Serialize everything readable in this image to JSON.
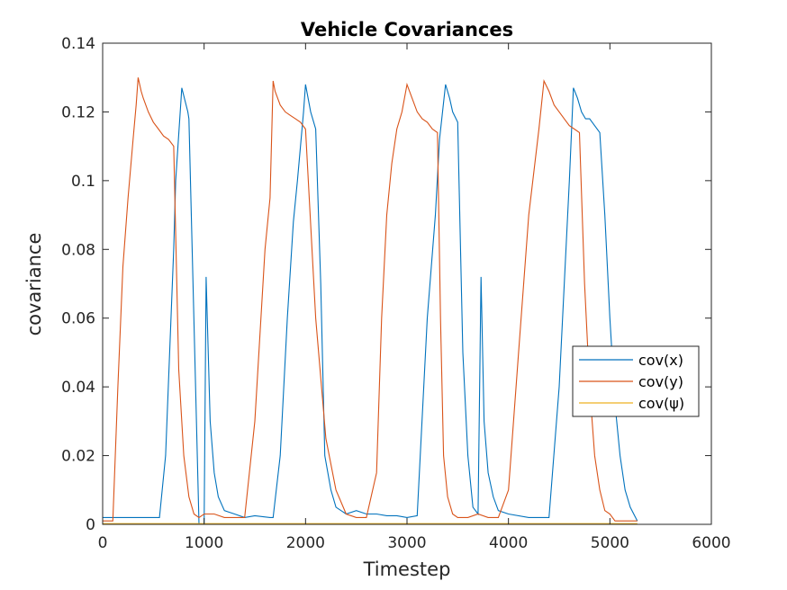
{
  "chart_data": {
    "type": "line",
    "title": "Vehicle Covariances",
    "xlabel": "Timestep",
    "ylabel": "covariance",
    "xlim": [
      0,
      6000
    ],
    "ylim": [
      0,
      0.14
    ],
    "x_ticks": [
      "0",
      "1000",
      "2000",
      "3000",
      "4000",
      "5000",
      "6000"
    ],
    "y_ticks": [
      "0",
      "0.02",
      "0.04",
      "0.06",
      "0.08",
      "0.1",
      "0.12",
      "0.14"
    ],
    "grid": false,
    "legend_position": "right",
    "colors": [
      "#0072BD",
      "#D95319",
      "#EDB120"
    ],
    "series": [
      {
        "name": "cov(x)",
        "x": [
          0,
          150,
          400,
          560,
          620,
          700,
          720,
          780,
          840,
          850,
          950,
          970,
          1000,
          1020,
          1060,
          1100,
          1140,
          1200,
          1300,
          1400,
          1500,
          1650,
          1680,
          1750,
          1820,
          1880,
          1920,
          1980,
          2000,
          2050,
          2100,
          2150,
          2190,
          2250,
          2300,
          2400,
          2500,
          2600,
          2700,
          2800,
          2900,
          3000,
          3100,
          3200,
          3280,
          3320,
          3380,
          3420,
          3450,
          3500,
          3550,
          3600,
          3650,
          3700,
          3730,
          3760,
          3800,
          3850,
          3900,
          4000,
          4200,
          4300,
          4400,
          4500,
          4600,
          4640,
          4680,
          4720,
          4760,
          4800,
          4850,
          4900,
          4950,
          5000,
          5050,
          5100,
          5150,
          5200,
          5270
        ],
        "y": [
          0.002,
          0.002,
          0.002,
          0.002,
          0.02,
          0.08,
          0.1,
          0.127,
          0.12,
          0.118,
          0.0,
          0.0,
          0.0,
          0.072,
          0.03,
          0.015,
          0.008,
          0.004,
          0.003,
          0.002,
          0.0025,
          0.002,
          0.002,
          0.02,
          0.06,
          0.088,
          0.1,
          0.12,
          0.128,
          0.12,
          0.115,
          0.07,
          0.02,
          0.01,
          0.005,
          0.003,
          0.004,
          0.003,
          0.003,
          0.0025,
          0.0025,
          0.002,
          0.0025,
          0.06,
          0.09,
          0.112,
          0.128,
          0.124,
          0.12,
          0.117,
          0.05,
          0.02,
          0.005,
          0.003,
          0.072,
          0.03,
          0.015,
          0.008,
          0.004,
          0.003,
          0.002,
          0.002,
          0.002,
          0.04,
          0.1,
          0.127,
          0.124,
          0.12,
          0.118,
          0.118,
          0.116,
          0.114,
          0.09,
          0.06,
          0.035,
          0.02,
          0.01,
          0.005,
          0.001
        ]
      },
      {
        "name": "cov(y)",
        "x": [
          0,
          100,
          150,
          200,
          250,
          300,
          330,
          350,
          380,
          400,
          450,
          500,
          550,
          600,
          650,
          700,
          750,
          800,
          850,
          900,
          950,
          1000,
          1100,
          1200,
          1300,
          1400,
          1500,
          1600,
          1650,
          1680,
          1700,
          1750,
          1800,
          1850,
          1900,
          1950,
          2000,
          2100,
          2200,
          2300,
          2400,
          2500,
          2600,
          2700,
          2750,
          2800,
          2850,
          2900,
          2950,
          3000,
          3050,
          3100,
          3150,
          3200,
          3250,
          3300,
          3330,
          3360,
          3400,
          3450,
          3500,
          3600,
          3700,
          3800,
          3900,
          4000,
          4100,
          4200,
          4300,
          4350,
          4400,
          4450,
          4500,
          4550,
          4600,
          4650,
          4700,
          4750,
          4800,
          4850,
          4900,
          4950,
          5000,
          5050,
          5100,
          5200,
          5270
        ],
        "y": [
          0.001,
          0.001,
          0.04,
          0.075,
          0.095,
          0.112,
          0.122,
          0.13,
          0.126,
          0.124,
          0.12,
          0.117,
          0.115,
          0.113,
          0.112,
          0.11,
          0.045,
          0.02,
          0.008,
          0.003,
          0.002,
          0.003,
          0.003,
          0.002,
          0.002,
          0.002,
          0.03,
          0.08,
          0.095,
          0.129,
          0.126,
          0.122,
          0.12,
          0.119,
          0.118,
          0.117,
          0.115,
          0.06,
          0.025,
          0.01,
          0.003,
          0.002,
          0.002,
          0.015,
          0.06,
          0.09,
          0.105,
          0.115,
          0.12,
          0.128,
          0.124,
          0.12,
          0.118,
          0.117,
          0.115,
          0.114,
          0.06,
          0.02,
          0.008,
          0.003,
          0.002,
          0.002,
          0.003,
          0.002,
          0.002,
          0.01,
          0.05,
          0.09,
          0.115,
          0.129,
          0.126,
          0.122,
          0.12,
          0.118,
          0.116,
          0.115,
          0.114,
          0.07,
          0.04,
          0.02,
          0.01,
          0.004,
          0.003,
          0.001,
          0.001,
          0.001,
          0.001
        ]
      },
      {
        "name": "cov(ψ)",
        "x": [
          0,
          1000,
          2000,
          3000,
          4000,
          5000,
          5270
        ],
        "y": [
          0.0002,
          0.0002,
          0.0002,
          0.0002,
          0.0002,
          0.0002,
          0.0002
        ]
      }
    ]
  }
}
